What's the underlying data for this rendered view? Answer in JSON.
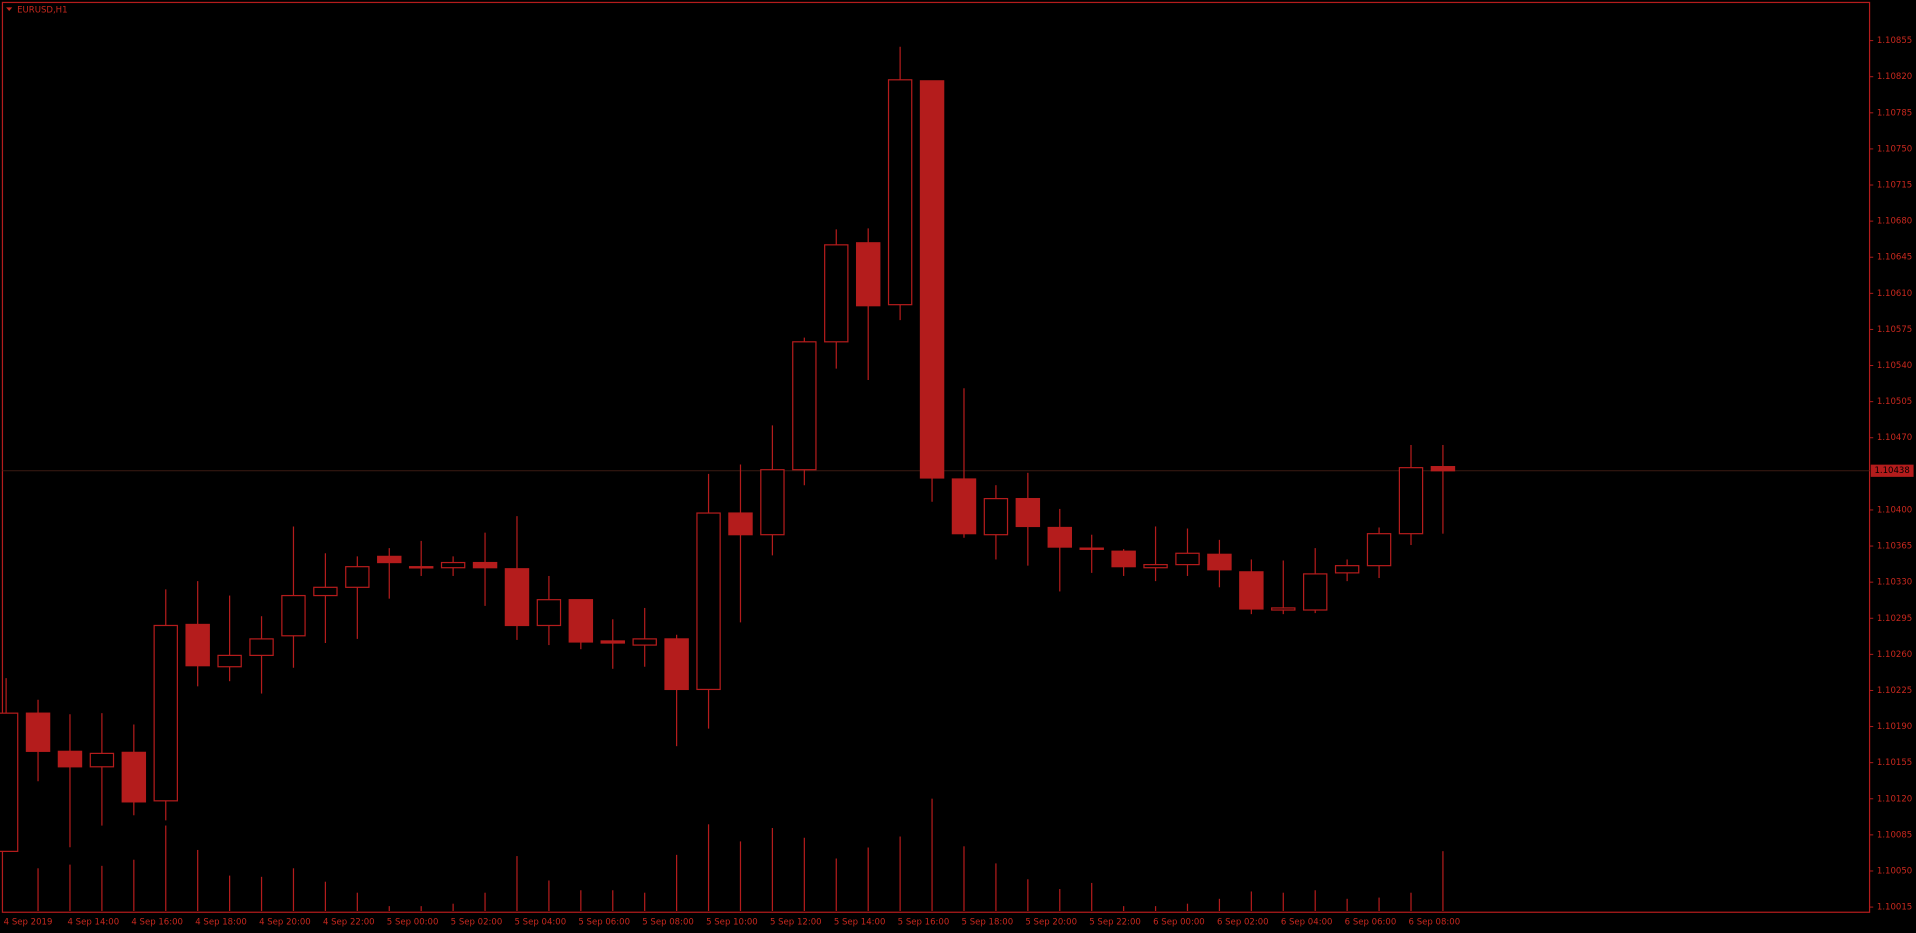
{
  "chart_data": {
    "type": "candlestick",
    "title": "EURUSD,H1",
    "x": [
      "4 Sep 2019",
      null,
      "4 Sep 14:00",
      null,
      "4 Sep 16:00",
      null,
      "4 Sep 18:00",
      null,
      "4 Sep 20:00",
      null,
      "4 Sep 22:00",
      null,
      "5 Sep 00:00",
      null,
      "5 Sep 02:00",
      null,
      "5 Sep 04:00",
      null,
      "5 Sep 06:00",
      null,
      "5 Sep 08:00",
      null,
      "5 Sep 10:00",
      null,
      "5 Sep 12:00",
      null,
      "5 Sep 14:00",
      null,
      "5 Sep 16:00",
      null,
      "5 Sep 18:00",
      null,
      "5 Sep 20:00",
      null,
      "5 Sep 22:00",
      null,
      "6 Sep 00:00",
      null,
      "6 Sep 02:00",
      null,
      "6 Sep 04:00",
      null,
      "6 Sep 06:00",
      null,
      "6 Sep 08:00",
      null
    ],
    "open": [
      1.10069,
      1.10203,
      1.10166,
      1.10151,
      1.10165,
      1.10118,
      1.10289,
      1.10248,
      1.10259,
      1.10278,
      1.10317,
      1.10325,
      1.10355,
      1.10345,
      1.10344,
      1.10349,
      1.10343,
      1.10288,
      1.10313,
      1.10273,
      1.10269,
      1.10275,
      1.10226,
      1.10397,
      1.10376,
      1.10439,
      1.10563,
      1.10659,
      1.10599,
      1.10816,
      1.1043,
      1.10376,
      1.10411,
      1.10383,
      1.10363,
      1.1036,
      1.10344,
      1.10347,
      1.10357,
      1.1034,
      1.10303,
      1.10303,
      1.10339,
      1.10346,
      1.10377,
      1.10442
    ],
    "high": [
      1.10237,
      1.10216,
      1.10202,
      1.10203,
      1.10192,
      1.10323,
      1.10331,
      1.10317,
      1.10297,
      1.10384,
      1.10358,
      1.10355,
      1.10363,
      1.1037,
      1.10355,
      1.10378,
      1.10394,
      1.10336,
      1.10313,
      1.10294,
      1.10305,
      1.10279,
      1.10435,
      1.10444,
      1.10482,
      1.10567,
      1.10672,
      1.10673,
      1.10849,
      1.10816,
      1.10518,
      1.10424,
      1.10436,
      1.10401,
      1.10376,
      1.10362,
      1.10384,
      1.10382,
      1.10371,
      1.10352,
      1.10351,
      1.10363,
      1.10352,
      1.10383,
      1.10463,
      1.10463
    ],
    "low": [
      1.10069,
      1.10137,
      1.10073,
      1.10094,
      1.10104,
      1.10099,
      1.10229,
      1.10234,
      1.10222,
      1.10247,
      1.10271,
      1.10275,
      1.10314,
      1.10336,
      1.10336,
      1.10307,
      1.10274,
      1.10269,
      1.10265,
      1.10246,
      1.10248,
      1.10171,
      1.10188,
      1.10291,
      1.10356,
      1.10424,
      1.10537,
      1.10526,
      1.10584,
      1.10408,
      1.10373,
      1.10352,
      1.10346,
      1.10321,
      1.10339,
      1.10336,
      1.10331,
      1.10336,
      1.10325,
      1.10299,
      1.10299,
      1.103,
      1.10331,
      1.10334,
      1.10366,
      1.10377
    ],
    "close": [
      1.10203,
      1.10166,
      1.10151,
      1.10164,
      1.10117,
      1.10288,
      1.10249,
      1.10259,
      1.10275,
      1.10317,
      1.10325,
      1.10345,
      1.10349,
      1.10344,
      1.10349,
      1.10344,
      1.10288,
      1.10313,
      1.10272,
      1.10271,
      1.10275,
      1.10226,
      1.10397,
      1.10376,
      1.10439,
      1.10563,
      1.10657,
      1.10598,
      1.10817,
      1.10431,
      1.10377,
      1.10411,
      1.10384,
      1.10364,
      1.10362,
      1.10345,
      1.10347,
      1.10358,
      1.10342,
      1.10304,
      1.10305,
      1.10338,
      1.10346,
      1.10377,
      1.10441,
      1.10438
    ],
    "volume": [
      null,
      35,
      38,
      37,
      42,
      70,
      50,
      29,
      28,
      35,
      24,
      15,
      4,
      4,
      6,
      15,
      45,
      25,
      17,
      17,
      15,
      46,
      71,
      57,
      68,
      60,
      43,
      52,
      61,
      92,
      53,
      39,
      26,
      18,
      23,
      4,
      4,
      6,
      10,
      16,
      15,
      17,
      10,
      11,
      15,
      49
    ],
    "ylim": [
      1.1001,
      1.10892
    ],
    "yticks": [
      1.10015,
      {
        "value": 1.1005,
        "label": "1.10050"
      },
      1.10085,
      {
        "value": 1.1012,
        "label": "1.10120"
      },
      1.10155,
      {
        "value": 1.1019,
        "label": "1.10190"
      },
      1.10225,
      {
        "value": 1.1026,
        "label": "1.10260"
      },
      1.10295,
      {
        "value": 1.1033,
        "label": "1.10330"
      },
      1.10365,
      {
        "value": 1.104,
        "label": "1.10400"
      },
      {
        "value": 1.1047,
        "label": "1.10470"
      },
      1.10505,
      {
        "value": 1.1054,
        "label": "1.10540"
      },
      1.10575,
      {
        "value": 1.1061,
        "label": "1.10610"
      },
      1.10645,
      {
        "value": 1.1068,
        "label": "1.10680"
      },
      1.10715,
      {
        "value": 1.1075,
        "label": "1.10750"
      },
      1.10785,
      {
        "value": 1.1082,
        "label": "1.10820"
      },
      1.10855
    ],
    "last_price": 1.10438,
    "color": "#b41c1c"
  }
}
